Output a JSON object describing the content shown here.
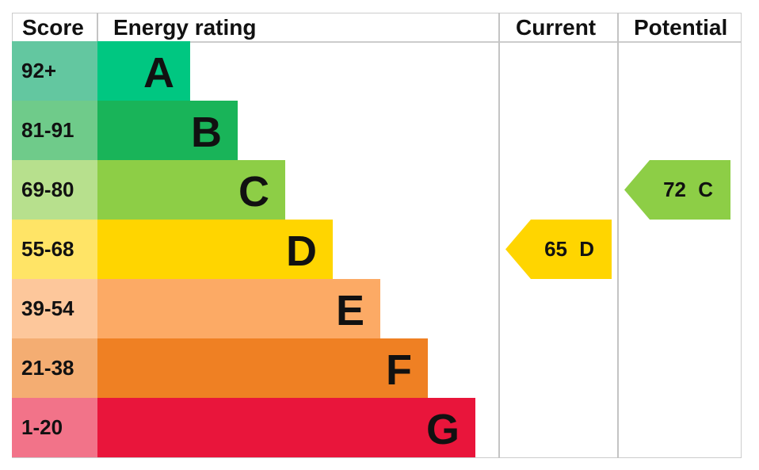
{
  "chart_data": {
    "type": "table",
    "headers": {
      "score": "Score",
      "rating": "Energy rating",
      "current": "Current",
      "potential": "Potential"
    },
    "bands": [
      {
        "score": "92+",
        "letter": "A",
        "color": "#00c781",
        "score_color": "#63c7a0"
      },
      {
        "score": "81-91",
        "letter": "B",
        "color": "#19b459",
        "score_color": "#6fcb8a"
      },
      {
        "score": "69-80",
        "letter": "C",
        "color": "#8dce46",
        "score_color": "#b7e08d"
      },
      {
        "score": "55-68",
        "letter": "D",
        "color": "#ffd500",
        "score_color": "#ffe466"
      },
      {
        "score": "39-54",
        "letter": "E",
        "color": "#fcaa65",
        "score_color": "#fdc79b"
      },
      {
        "score": "21-38",
        "letter": "F",
        "color": "#ef8023",
        "score_color": "#f4ad72"
      },
      {
        "score": "1-20",
        "letter": "G",
        "color": "#e9153b",
        "score_color": "#f27389"
      }
    ],
    "current": {
      "value": 65,
      "letter": "D",
      "label": "65 D",
      "color": "#ffd500"
    },
    "potential": {
      "value": 72,
      "letter": "C",
      "label": "72 C",
      "color": "#8dce46"
    }
  }
}
